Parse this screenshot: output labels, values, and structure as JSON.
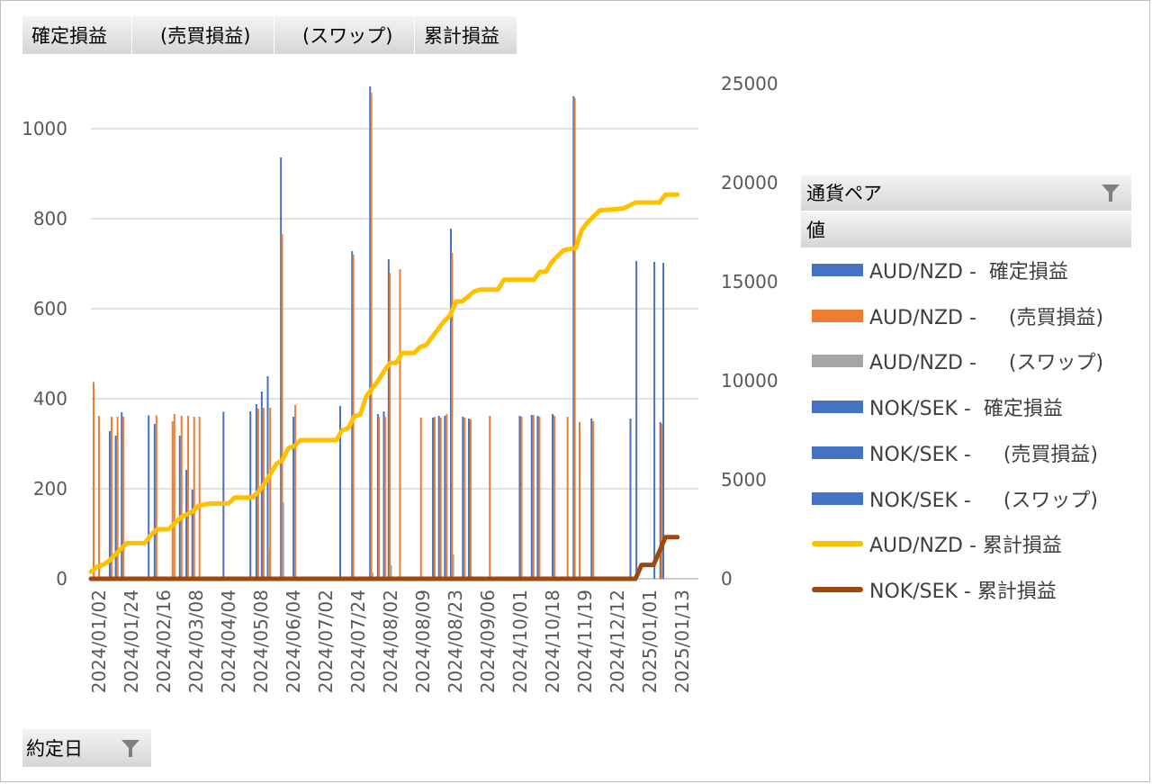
{
  "field_buttons": [
    "確定損益",
    "　(売買損益)",
    "　(スワップ)",
    "累計損益"
  ],
  "legend": {
    "header_series": "通貨ペア",
    "header_values": "値",
    "items": [
      {
        "label": "AUD/NZD -  確定損益",
        "color": "#4472c4",
        "kind": "bar"
      },
      {
        "label": "AUD/NZD -  　(売買損益)",
        "color": "#ed7d31",
        "kind": "bar"
      },
      {
        "label": "AUD/NZD -  　(スワップ)",
        "color": "#a5a5a5",
        "kind": "bar"
      },
      {
        "label": "NOK/SEK -  確定損益",
        "color": "#4472c4",
        "kind": "bar"
      },
      {
        "label": "NOK/SEK -  　(売買損益)",
        "color": "#4472c4",
        "kind": "bar"
      },
      {
        "label": "NOK/SEK -  　(スワップ)",
        "color": "#4472c4",
        "kind": "bar"
      },
      {
        "label": "AUD/NZD - 累計損益",
        "color": "#ffc000",
        "kind": "line"
      },
      {
        "label": "NOK/SEK - 累計損益",
        "color": "#9e480e",
        "kind": "line"
      }
    ]
  },
  "bottom_field": "約定日",
  "chart_data": {
    "type": "bar",
    "x_categories": [
      "2024/01/02",
      "2024/01/24",
      "2024/02/16",
      "2024/03/08",
      "2024/04/04",
      "2024/05/08",
      "2024/06/04",
      "2024/07/02",
      "2024/07/24",
      "2024/08/02",
      "2024/08/09",
      "2024/08/23",
      "2024/09/06",
      "2024/10/01",
      "2024/10/18",
      "2024/11/19",
      "2024/12/12",
      "2025/01/01",
      "2025/01/13"
    ],
    "y_left": {
      "ticks": [
        0,
        200,
        400,
        600,
        800,
        1000
      ],
      "lim": [
        0,
        1100
      ]
    },
    "y_right": {
      "ticks": [
        0,
        5000,
        10000,
        15000,
        20000,
        25000
      ],
      "lim": [
        0,
        25000
      ]
    },
    "bar_span": [
      0,
      100
    ],
    "bars": [
      {
        "x": 0.3,
        "v": 437,
        "c": "#ed7d31"
      },
      {
        "x": 1.2,
        "v": 362,
        "c": "#ed7d31"
      },
      {
        "x": 3.0,
        "v": 328,
        "c": "#4472c4"
      },
      {
        "x": 3.3,
        "v": 360,
        "c": "#ed7d31"
      },
      {
        "x": 4.0,
        "v": 318,
        "c": "#4472c4"
      },
      {
        "x": 4.3,
        "v": 360,
        "c": "#ed7d31"
      },
      {
        "x": 5.0,
        "v": 370,
        "c": "#4472c4"
      },
      {
        "x": 5.3,
        "v": 360,
        "c": "#ed7d31"
      },
      {
        "x": 9.5,
        "v": 363,
        "c": "#4472c4"
      },
      {
        "x": 10.5,
        "v": 344,
        "c": "#4472c4"
      },
      {
        "x": 10.8,
        "v": 363,
        "c": "#ed7d31"
      },
      {
        "x": 13.5,
        "v": 350,
        "c": "#ed7d31"
      },
      {
        "x": 13.8,
        "v": 366,
        "c": "#ed7d31"
      },
      {
        "x": 14.7,
        "v": 318,
        "c": "#4472c4"
      },
      {
        "x": 15.0,
        "v": 362,
        "c": "#ed7d31"
      },
      {
        "x": 15.8,
        "v": 242,
        "c": "#4472c4"
      },
      {
        "x": 16.1,
        "v": 362,
        "c": "#ed7d31"
      },
      {
        "x": 16.8,
        "v": 198,
        "c": "#4472c4"
      },
      {
        "x": 17.1,
        "v": 360,
        "c": "#ed7d31"
      },
      {
        "x": 18.0,
        "v": 360,
        "c": "#ed7d31"
      },
      {
        "x": 22.0,
        "v": 371,
        "c": "#4472c4"
      },
      {
        "x": 26.5,
        "v": 372,
        "c": "#4472c4"
      },
      {
        "x": 27.5,
        "v": 388,
        "c": "#4472c4"
      },
      {
        "x": 27.8,
        "v": 378,
        "c": "#ed7d31"
      },
      {
        "x": 28.4,
        "v": 416,
        "c": "#4472c4"
      },
      {
        "x": 28.7,
        "v": 380,
        "c": "#ed7d31"
      },
      {
        "x": 29.4,
        "v": 450,
        "c": "#4472c4"
      },
      {
        "x": 29.6,
        "v": 66,
        "c": "#a5a5a5"
      },
      {
        "x": 29.8,
        "v": 380,
        "c": "#ed7d31"
      },
      {
        "x": 31.6,
        "v": 936,
        "c": "#4472c4"
      },
      {
        "x": 31.8,
        "v": 766,
        "c": "#ed7d31"
      },
      {
        "x": 32.0,
        "v": 170,
        "c": "#a5a5a5"
      },
      {
        "x": 33.7,
        "v": 360,
        "c": "#4472c4"
      },
      {
        "x": 34.0,
        "v": 386,
        "c": "#ed7d31"
      },
      {
        "x": 41.5,
        "v": 384,
        "c": "#4472c4"
      },
      {
        "x": 43.5,
        "v": 728,
        "c": "#4472c4"
      },
      {
        "x": 43.7,
        "v": 720,
        "c": "#ed7d31"
      },
      {
        "x": 46.5,
        "v": 1094,
        "c": "#4472c4"
      },
      {
        "x": 46.7,
        "v": 1080,
        "c": "#ed7d31"
      },
      {
        "x": 46.9,
        "v": 14,
        "c": "#a5a5a5"
      },
      {
        "x": 47.8,
        "v": 366,
        "c": "#4472c4"
      },
      {
        "x": 48.0,
        "v": 360,
        "c": "#ed7d31"
      },
      {
        "x": 48.8,
        "v": 372,
        "c": "#4472c4"
      },
      {
        "x": 49.0,
        "v": 360,
        "c": "#ed7d31"
      },
      {
        "x": 49.6,
        "v": 710,
        "c": "#4472c4"
      },
      {
        "x": 49.8,
        "v": 680,
        "c": "#ed7d31"
      },
      {
        "x": 50.0,
        "v": 30,
        "c": "#a5a5a5"
      },
      {
        "x": 51.5,
        "v": 688,
        "c": "#ed7d31"
      },
      {
        "x": 55.0,
        "v": 358,
        "c": "#ed7d31"
      },
      {
        "x": 57.0,
        "v": 358,
        "c": "#4472c4"
      },
      {
        "x": 57.3,
        "v": 360,
        "c": "#ed7d31"
      },
      {
        "x": 58.0,
        "v": 362,
        "c": "#4472c4"
      },
      {
        "x": 58.3,
        "v": 358,
        "c": "#ed7d31"
      },
      {
        "x": 59.0,
        "v": 362,
        "c": "#4472c4"
      },
      {
        "x": 59.3,
        "v": 366,
        "c": "#ed7d31"
      },
      {
        "x": 60.0,
        "v": 778,
        "c": "#4472c4"
      },
      {
        "x": 60.2,
        "v": 724,
        "c": "#ed7d31"
      },
      {
        "x": 60.4,
        "v": 54,
        "c": "#a5a5a5"
      },
      {
        "x": 62.0,
        "v": 360,
        "c": "#4472c4"
      },
      {
        "x": 62.3,
        "v": 358,
        "c": "#ed7d31"
      },
      {
        "x": 63.0,
        "v": 356,
        "c": "#4472c4"
      },
      {
        "x": 63.3,
        "v": 354,
        "c": "#ed7d31"
      },
      {
        "x": 66.5,
        "v": 362,
        "c": "#ed7d31"
      },
      {
        "x": 71.5,
        "v": 362,
        "c": "#4472c4"
      },
      {
        "x": 71.8,
        "v": 360,
        "c": "#ed7d31"
      },
      {
        "x": 73.5,
        "v": 364,
        "c": "#4472c4"
      },
      {
        "x": 73.8,
        "v": 364,
        "c": "#ed7d31"
      },
      {
        "x": 74.5,
        "v": 362,
        "c": "#4472c4"
      },
      {
        "x": 74.8,
        "v": 360,
        "c": "#ed7d31"
      },
      {
        "x": 77.0,
        "v": 366,
        "c": "#4472c4"
      },
      {
        "x": 77.3,
        "v": 362,
        "c": "#ed7d31"
      },
      {
        "x": 79.5,
        "v": 360,
        "c": "#ed7d31"
      },
      {
        "x": 80.5,
        "v": 1072,
        "c": "#4472c4"
      },
      {
        "x": 80.7,
        "v": 1068,
        "c": "#ed7d31"
      },
      {
        "x": 81.5,
        "v": 348,
        "c": "#ed7d31"
      },
      {
        "x": 83.5,
        "v": 356,
        "c": "#4472c4"
      },
      {
        "x": 83.8,
        "v": 350,
        "c": "#ed7d31"
      },
      {
        "x": 90.0,
        "v": 356,
        "c": "#4472c4"
      },
      {
        "x": 91.0,
        "v": 706,
        "c": "#4472c4"
      },
      {
        "x": 94.0,
        "v": 704,
        "c": "#4472c4"
      },
      {
        "x": 95.0,
        "v": 348,
        "c": "#4472c4"
      },
      {
        "x": 95.2,
        "v": 344,
        "c": "#ed7d31"
      },
      {
        "x": 95.5,
        "v": 702,
        "c": "#4472c4"
      }
    ],
    "lines": [
      {
        "name": "AUD/NZD - 累計損益",
        "color": "#ffc000",
        "points": [
          [
            0,
            350
          ],
          [
            1,
            600
          ],
          [
            2,
            700
          ],
          [
            3,
            900
          ],
          [
            4,
            1200
          ],
          [
            5,
            1500
          ],
          [
            6,
            1800
          ],
          [
            8,
            1800
          ],
          [
            9,
            1800
          ],
          [
            10,
            2200
          ],
          [
            11,
            2500
          ],
          [
            13,
            2500
          ],
          [
            14,
            2800
          ],
          [
            15,
            3100
          ],
          [
            17,
            3400
          ],
          [
            18,
            3700
          ],
          [
            20,
            3800
          ],
          [
            23,
            3800
          ],
          [
            24,
            4100
          ],
          [
            27,
            4100
          ],
          [
            28,
            4400
          ],
          [
            29,
            4800
          ],
          [
            30,
            5300
          ],
          [
            31,
            5800
          ],
          [
            32,
            6000
          ],
          [
            33,
            6600
          ],
          [
            34,
            6700
          ],
          [
            35,
            7000
          ],
          [
            41,
            7000
          ],
          [
            42,
            7500
          ],
          [
            43,
            7600
          ],
          [
            44,
            8200
          ],
          [
            45,
            8300
          ],
          [
            46,
            9200
          ],
          [
            47,
            9600
          ],
          [
            48,
            10000
          ],
          [
            49,
            10500
          ],
          [
            50,
            10900
          ],
          [
            51,
            10900
          ],
          [
            52,
            11400
          ],
          [
            54,
            11400
          ],
          [
            55,
            11700
          ],
          [
            56,
            11800
          ],
          [
            57,
            12200
          ],
          [
            58,
            12600
          ],
          [
            59,
            13000
          ],
          [
            60,
            13300
          ],
          [
            61,
            14000
          ],
          [
            62,
            14000
          ],
          [
            64,
            14500
          ],
          [
            65,
            14600
          ],
          [
            68,
            14600
          ],
          [
            69,
            15100
          ],
          [
            74,
            15100
          ],
          [
            75,
            15500
          ],
          [
            76,
            15500
          ],
          [
            77,
            16000
          ],
          [
            78,
            16300
          ],
          [
            79,
            16600
          ],
          [
            81,
            16700
          ],
          [
            82,
            17600
          ],
          [
            83,
            18000
          ],
          [
            84,
            18300
          ],
          [
            85,
            18600
          ],
          [
            89,
            18700
          ],
          [
            91,
            19000
          ],
          [
            95,
            19000
          ],
          [
            96,
            19400
          ],
          [
            98,
            19400
          ]
        ]
      },
      {
        "name": "NOK/SEK - 累計損益",
        "color": "#9e480e",
        "points": [
          [
            0,
            0
          ],
          [
            91,
            0
          ],
          [
            92,
            700
          ],
          [
            93,
            700
          ],
          [
            94,
            700
          ],
          [
            95,
            1400
          ],
          [
            96,
            2100
          ],
          [
            98,
            2100
          ]
        ]
      }
    ]
  }
}
